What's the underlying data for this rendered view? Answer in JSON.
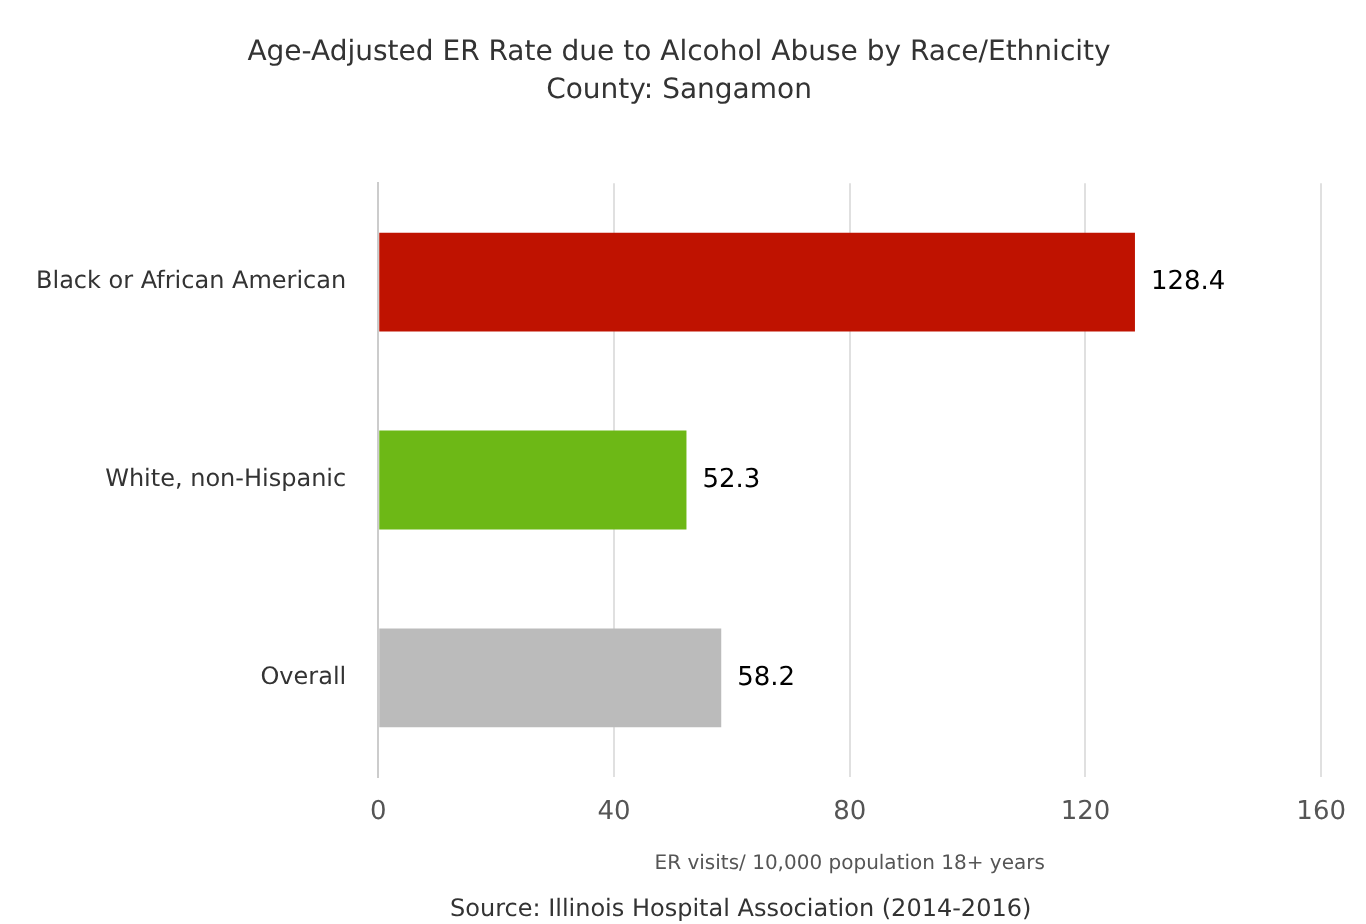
{
  "chart_data": {
    "type": "bar",
    "orientation": "horizontal",
    "title": "Age-Adjusted ER Rate due to Alcohol Abuse by Race/Ethnicity",
    "subtitle": "County: Sangamon",
    "categories": [
      "Black or African American",
      "White, non-Hispanic",
      "Overall"
    ],
    "values": [
      128.4,
      52.3,
      58.2
    ],
    "colors": [
      "#bf1200",
      "#6db816",
      "#bbbbbb"
    ],
    "xlim": [
      0,
      160
    ],
    "xticks": [
      0,
      40,
      80,
      120,
      160
    ],
    "xlabel": "ER visits/ 10,000 population 18+ years",
    "grid": "x",
    "legend": false,
    "data_labels": true,
    "annotations": [
      "Source: Illinois Hospital Association (2014-2016)"
    ]
  }
}
